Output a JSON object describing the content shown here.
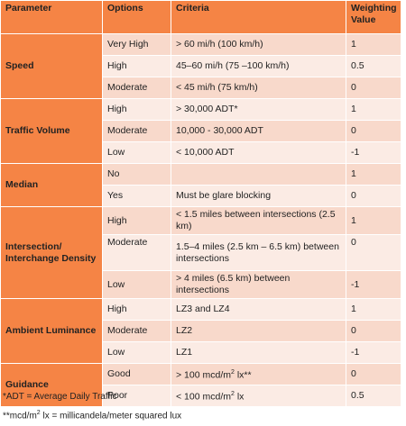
{
  "headers": {
    "parameter": "Parameter",
    "options": "Options",
    "criteria": "Criteria",
    "weighting": "Weighting Value"
  },
  "groups": [
    {
      "parameter": "Speed",
      "rows": [
        {
          "option": "Very High",
          "criteria": "> 60 mi/h (100 km/h)",
          "value": "1"
        },
        {
          "option": "High",
          "criteria": "45–60 mi/h (75 –100 km/h)",
          "value": "0.5"
        },
        {
          "option": "Moderate",
          "criteria": "< 45 mi/h (75 km/h)",
          "value": "0"
        }
      ]
    },
    {
      "parameter": "Traffic Volume",
      "rows": [
        {
          "option": "High",
          "criteria": "> 30,000 ADT*",
          "value": "1"
        },
        {
          "option": "Moderate",
          "criteria": " 10,000 - 30,000 ADT",
          "value": "0"
        },
        {
          "option": "Low",
          "criteria": "< 10,000 ADT",
          "value": "-1"
        }
      ]
    },
    {
      "parameter": "Median",
      "rows": [
        {
          "option": "No",
          "criteria": "",
          "value": "1"
        },
        {
          "option": "Yes",
          "criteria": "Must be glare blocking",
          "value": "0"
        }
      ]
    },
    {
      "parameter": "Intersection/ Interchange Density",
      "rows": [
        {
          "option": "High",
          "criteria": "< 1.5 miles between intersections (2.5 km)",
          "value": "1"
        },
        {
          "option": "Moderate",
          "criteria": "1.5–4 miles (2.5 km – 6.5 km) between intersections",
          "value": "0"
        },
        {
          "option": "Low",
          "criteria": "> 4 miles (6.5 km) between intersections",
          "value": "-1"
        }
      ]
    },
    {
      "parameter": "Ambient Luminance",
      "rows": [
        {
          "option": "High",
          "criteria": "LZ3 and LZ4",
          "value": "1"
        },
        {
          "option": "Moderate",
          "criteria": "LZ2",
          "value": "0"
        },
        {
          "option": "Low",
          "criteria": "LZ1",
          "value": "-1"
        }
      ]
    },
    {
      "parameter": "Guidance",
      "rows": [
        {
          "option": "Good",
          "criteria_pre": " > 100 mcd/m",
          "criteria_sup": "2",
          "criteria_post": " lx**",
          "value": "0"
        },
        {
          "option": "Poor",
          "criteria_pre": " < 100 mcd/m",
          "criteria_sup": "2",
          "criteria_post": " lx",
          "value": "0.5"
        }
      ]
    }
  ],
  "notes": {
    "note1": "*ADT = Average Daily Traffic",
    "note2_pre": "**mcd/m",
    "note2_sup": "2",
    "note2_post": " lx = millicandela/meter squared lux"
  }
}
